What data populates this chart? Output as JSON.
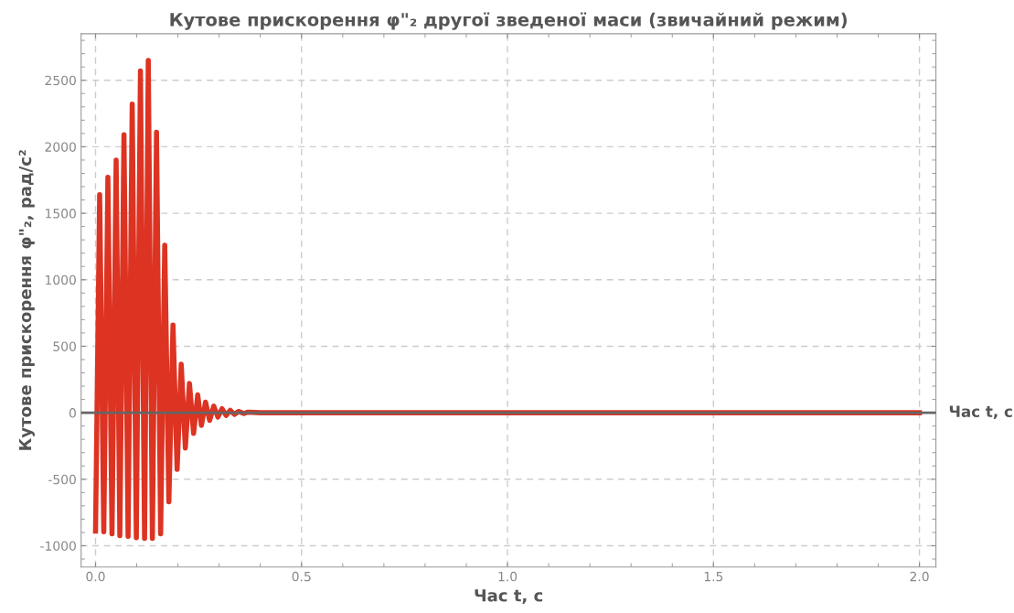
{
  "chart_data": {
    "type": "line",
    "title": "Кутове прискорення φ\"₂ другої зведеної маси (звичайний режим)",
    "xlabel": "Час t, с",
    "ylabel": "Кутове прискорення φ\"₂, рад/с²",
    "series": [
      {
        "color": "#dd3322",
        "x": [
          0.0,
          0.01,
          0.02,
          0.03,
          0.04,
          0.05,
          0.059,
          0.069,
          0.079,
          0.089,
          0.099,
          0.109,
          0.119,
          0.128,
          0.138,
          0.148,
          0.158,
          0.168,
          0.178,
          0.188,
          0.198,
          0.208,
          0.218,
          0.228,
          0.238,
          0.248,
          0.257,
          0.267,
          0.277,
          0.287,
          0.297,
          0.307,
          0.317,
          0.327,
          0.337,
          0.347,
          0.36,
          0.37,
          0.4,
          2.0
        ],
        "values": [
          -890,
          1640,
          -895,
          1770,
          -910,
          1900,
          -925,
          2090,
          -930,
          2320,
          -940,
          2570,
          -945,
          2650,
          -945,
          2110,
          -910,
          1260,
          -670,
          660,
          -425,
          365,
          -265,
          220,
          -155,
          135,
          -95,
          80,
          -57,
          50,
          -32,
          30,
          -20,
          18,
          -12,
          10,
          -6,
          5,
          0,
          0
        ]
      }
    ],
    "xlim": [
      -0.035,
      2.04
    ],
    "ylim": [
      -1160,
      2850
    ],
    "xticks": [
      {
        "value": 0,
        "label": "0.0"
      },
      {
        "value": 0.5,
        "label": "0.5"
      },
      {
        "value": 1,
        "label": "1.0"
      },
      {
        "value": 1.5,
        "label": "1.5"
      },
      {
        "value": 2,
        "label": "2.0"
      }
    ],
    "yticks": [
      -1000,
      -500,
      0,
      500,
      1000,
      1500,
      2000,
      2500
    ],
    "grid": true,
    "line_style": "solid",
    "marker": "none",
    "ref_lines": [
      {
        "axis": "y",
        "value": 0,
        "label": "Час t, с",
        "color": "#666666"
      }
    ]
  }
}
